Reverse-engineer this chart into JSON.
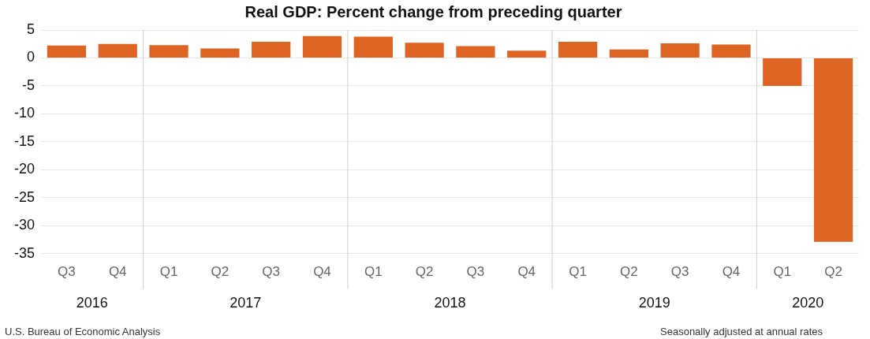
{
  "chart_data": {
    "type": "bar",
    "title": "Real GDP: Percent change from preceding quarter",
    "categories": [
      "Q3",
      "Q4",
      "Q1",
      "Q2",
      "Q3",
      "Q4",
      "Q1",
      "Q2",
      "Q3",
      "Q4",
      "Q1",
      "Q2",
      "Q3",
      "Q4",
      "Q1",
      "Q2"
    ],
    "values": [
      2.2,
      2.5,
      2.3,
      1.7,
      2.9,
      3.9,
      3.8,
      2.7,
      2.1,
      1.3,
      2.9,
      1.5,
      2.6,
      2.4,
      -5.0,
      -32.9
    ],
    "color": "#dd6423",
    "ylim": [
      -35,
      5
    ],
    "yticks": [
      -35,
      -30,
      -25,
      -20,
      -15,
      -10,
      -5,
      0,
      5
    ],
    "grid": "y",
    "annotations": [
      "2016",
      "2017",
      "2018",
      "2019",
      "2020",
      "U.S. Bureau of Economic Analysis",
      "Seasonally adjusted at annual rates"
    ]
  }
}
